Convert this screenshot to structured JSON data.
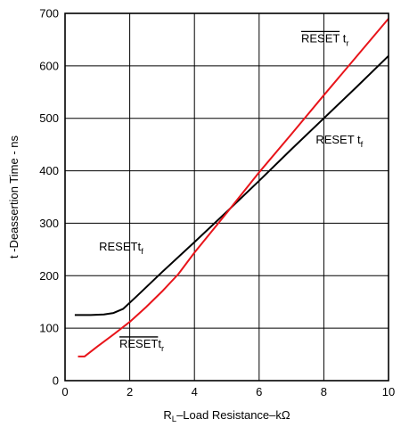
{
  "chart_data": {
    "type": "line",
    "xlabel_parts": [
      "R",
      "L",
      "–Load Resistance–kΩ"
    ],
    "ylabel": "t -Deassertion Time - ns",
    "xlim": [
      0,
      10
    ],
    "ylim": [
      0,
      700
    ],
    "xticks": [
      0,
      2,
      4,
      6,
      8,
      10
    ],
    "yticks": [
      0,
      100,
      200,
      300,
      400,
      500,
      600,
      700
    ],
    "grid": true,
    "series": [
      {
        "key": "falling",
        "color": "#000000",
        "points": [
          [
            0.3,
            125
          ],
          [
            0.8,
            125
          ],
          [
            1.2,
            126
          ],
          [
            1.5,
            129
          ],
          [
            1.8,
            137
          ],
          [
            2.2,
            160
          ],
          [
            3,
            207
          ],
          [
            4,
            264
          ],
          [
            5,
            322
          ],
          [
            6,
            381
          ],
          [
            7,
            441
          ],
          [
            8,
            500
          ],
          [
            9,
            559
          ],
          [
            10,
            619
          ]
        ]
      },
      {
        "key": "rising",
        "color": "#e8141a",
        "points": [
          [
            0.4,
            46
          ],
          [
            0.6,
            46
          ],
          [
            1,
            65
          ],
          [
            1.5,
            88
          ],
          [
            2,
            112
          ],
          [
            2.5,
            140
          ],
          [
            3,
            170
          ],
          [
            3.5,
            203
          ],
          [
            4,
            244
          ],
          [
            5,
            320
          ],
          [
            6,
            397
          ],
          [
            7,
            470
          ],
          [
            8,
            544
          ],
          [
            9,
            617
          ],
          [
            10,
            690
          ]
        ]
      }
    ],
    "annotations": [
      {
        "key": "rising-top",
        "main": "RESET",
        "sub_main": " t",
        "sub": "r",
        "overline": true,
        "x": 7.3,
        "y": 645
      },
      {
        "key": "falling-right",
        "main": "RESET",
        "sub_main": " t",
        "sub": "f",
        "overline": false,
        "x": 7.75,
        "y": 452
      },
      {
        "key": "falling-left",
        "main": "RESET",
        "sub_main": "t",
        "sub": "f",
        "overline": false,
        "x": 1.05,
        "y": 248
      },
      {
        "key": "rising-bottom",
        "main": "RESET",
        "sub_main": "t",
        "sub": "r",
        "overline": true,
        "x": 1.68,
        "y": 63
      }
    ]
  }
}
